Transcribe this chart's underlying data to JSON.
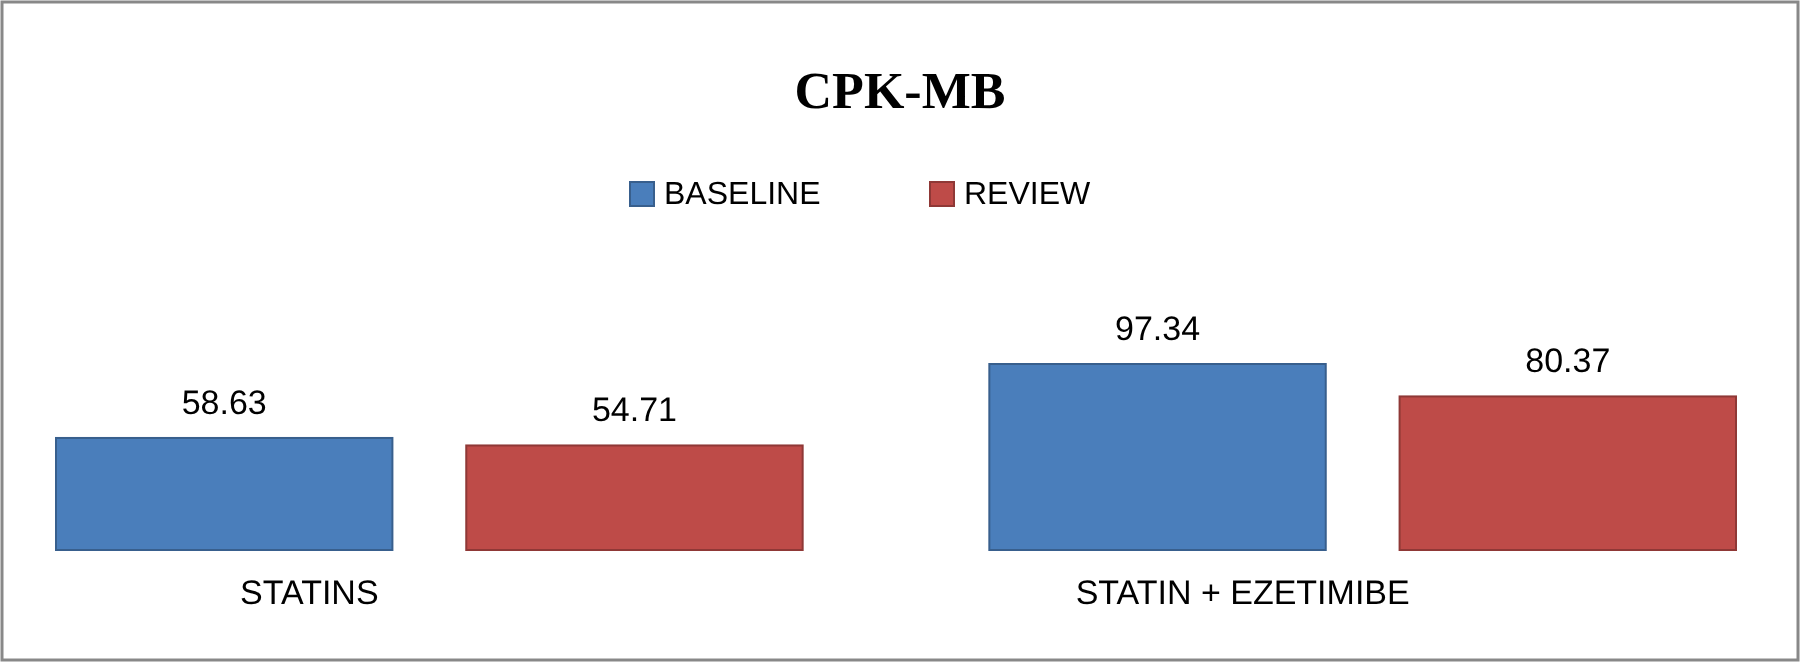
{
  "chart_data": {
    "type": "bar",
    "title": "CPK-MB",
    "categories": [
      "STATINS",
      "STATIN + EZETIMIBE"
    ],
    "series": [
      {
        "name": "BASELINE",
        "color": "#4a7ebb",
        "values": [
          58.63,
          97.34
        ]
      },
      {
        "name": "REVIEW",
        "color": "#be4b48",
        "values": [
          54.71,
          80.37
        ]
      }
    ],
    "data_labels": true,
    "legend": "top"
  }
}
